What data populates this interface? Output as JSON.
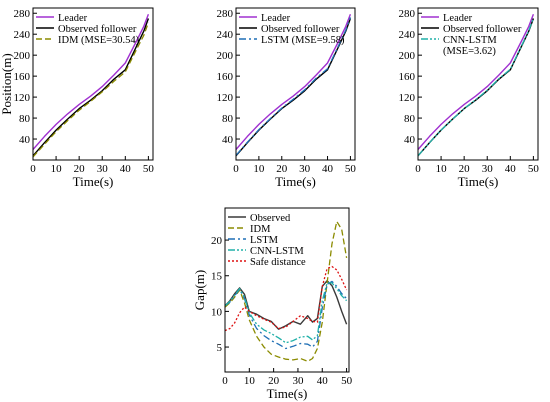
{
  "chart_data": [
    {
      "type": "line",
      "xlabel": "Time(s)",
      "ylabel": "Position(m)",
      "xlim": [
        0,
        52
      ],
      "ylim": [
        0,
        290
      ],
      "xticks": [
        0,
        10,
        20,
        30,
        40,
        50
      ],
      "yticks": [
        40,
        80,
        120,
        160,
        200,
        240,
        280
      ],
      "legend_position": "top-left",
      "series": [
        {
          "name": "Leader",
          "color": "#a030d0",
          "style": "solid",
          "x": [
            0,
            5,
            10,
            15,
            20,
            25,
            30,
            35,
            40,
            45,
            48,
            50
          ],
          "y": [
            20,
            45,
            68,
            88,
            106,
            122,
            140,
            162,
            185,
            228,
            255,
            278
          ]
        },
        {
          "name": "Observed follower",
          "color": "#000000",
          "style": "solid",
          "x": [
            0,
            5,
            10,
            15,
            20,
            25,
            30,
            35,
            40,
            45,
            48,
            50
          ],
          "y": [
            8,
            33,
            57,
            78,
            98,
            114,
            132,
            154,
            172,
            218,
            246,
            270
          ]
        },
        {
          "name": "IDM (MSE=30.54)",
          "color": "#8b8b00",
          "style": "dash",
          "x": [
            0,
            5,
            10,
            15,
            20,
            25,
            30,
            35,
            40,
            45,
            48,
            50
          ],
          "y": [
            6,
            30,
            54,
            75,
            95,
            112,
            130,
            150,
            168,
            212,
            238,
            262
          ]
        }
      ]
    },
    {
      "type": "line",
      "xlabel": "Time(s)",
      "ylabel": "",
      "xlim": [
        0,
        52
      ],
      "ylim": [
        0,
        290
      ],
      "xticks": [
        0,
        10,
        20,
        30,
        40,
        50
      ],
      "yticks": [
        40,
        80,
        120,
        160,
        200,
        240,
        280
      ],
      "legend_position": "top-left",
      "series": [
        {
          "name": "Leader",
          "color": "#a030d0",
          "style": "solid",
          "x": [
            0,
            5,
            10,
            15,
            20,
            25,
            30,
            35,
            40,
            45,
            48,
            50
          ],
          "y": [
            20,
            45,
            68,
            88,
            106,
            122,
            140,
            162,
            185,
            228,
            255,
            278
          ]
        },
        {
          "name": "Observed follower",
          "color": "#000000",
          "style": "solid",
          "x": [
            0,
            5,
            10,
            15,
            20,
            25,
            30,
            35,
            40,
            45,
            48,
            50
          ],
          "y": [
            8,
            33,
            57,
            78,
            98,
            114,
            132,
            154,
            172,
            218,
            246,
            270
          ]
        },
        {
          "name": "LSTM (MSE=9.58)",
          "color": "#1f6fb5",
          "style": "dashdot",
          "x": [
            0,
            5,
            10,
            15,
            20,
            25,
            30,
            35,
            40,
            45,
            48,
            50
          ],
          "y": [
            9,
            34,
            58,
            79,
            99,
            116,
            134,
            156,
            174,
            220,
            248,
            272
          ]
        }
      ]
    },
    {
      "type": "line",
      "xlabel": "Time(s)",
      "ylabel": "",
      "xlim": [
        0,
        52
      ],
      "ylim": [
        0,
        290
      ],
      "xticks": [
        0,
        10,
        20,
        30,
        40,
        50
      ],
      "yticks": [
        40,
        80,
        120,
        160,
        200,
        240,
        280
      ],
      "legend_position": "top-left",
      "series": [
        {
          "name": "Leader",
          "color": "#a030d0",
          "style": "solid",
          "x": [
            0,
            5,
            10,
            15,
            20,
            25,
            30,
            35,
            40,
            45,
            48,
            50
          ],
          "y": [
            20,
            45,
            68,
            88,
            106,
            122,
            140,
            162,
            185,
            228,
            255,
            278
          ]
        },
        {
          "name": "Observed follower",
          "color": "#000000",
          "style": "solid",
          "x": [
            0,
            5,
            10,
            15,
            20,
            25,
            30,
            35,
            40,
            45,
            48,
            50
          ],
          "y": [
            8,
            33,
            57,
            78,
            98,
            114,
            132,
            154,
            172,
            218,
            246,
            270
          ]
        },
        {
          "name": "CNN-LSTM (MSE=3.62)",
          "color": "#20b0a8",
          "style": "dashdotdot",
          "x": [
            0,
            5,
            10,
            15,
            20,
            25,
            30,
            35,
            40,
            45,
            48,
            50
          ],
          "y": [
            8,
            33,
            57,
            78,
            98,
            115,
            133,
            155,
            173,
            219,
            247,
            271
          ]
        }
      ]
    },
    {
      "type": "line",
      "xlabel": "Time(s)",
      "ylabel": "Gap(m)",
      "xlim": [
        0,
        51
      ],
      "ylim": [
        1.5,
        24.5
      ],
      "xticks": [
        0,
        10,
        20,
        30,
        40,
        50
      ],
      "yticks": [
        5,
        10,
        15,
        20
      ],
      "legend_position": "top-left",
      "series": [
        {
          "name": "Observed",
          "color": "#3a3a3a",
          "style": "solid",
          "x": [
            0,
            2,
            4,
            6,
            8,
            10,
            13,
            16,
            19,
            22,
            25,
            28,
            31,
            34,
            36,
            38,
            40,
            42,
            44,
            46,
            48,
            50
          ],
          "y": [
            10.8,
            11.5,
            12.5,
            13.3,
            12.4,
            10.0,
            9.6,
            9.0,
            8.6,
            7.5,
            8.0,
            8.6,
            8.2,
            9.4,
            8.5,
            9.0,
            13.5,
            14.3,
            13.6,
            12.0,
            10.0,
            8.2
          ]
        },
        {
          "name": "IDM",
          "color": "#8b8b00",
          "style": "dash",
          "x": [
            0,
            2,
            4,
            6,
            8,
            10,
            13,
            16,
            19,
            22,
            25,
            28,
            31,
            34,
            36,
            38,
            40,
            42,
            44,
            46,
            48,
            50
          ],
          "y": [
            10.6,
            11.2,
            12.0,
            13.0,
            11.2,
            8.8,
            6.5,
            5.0,
            4.0,
            3.6,
            3.3,
            3.2,
            3.4,
            3.0,
            3.4,
            4.8,
            8.5,
            14.0,
            19.5,
            22.6,
            21.5,
            17.5
          ]
        },
        {
          "name": "LSTM",
          "color": "#1f6fb5",
          "style": "dashdot",
          "x": [
            0,
            2,
            4,
            6,
            8,
            10,
            13,
            16,
            19,
            22,
            25,
            28,
            31,
            34,
            36,
            38,
            40,
            42,
            44,
            46,
            48,
            50
          ],
          "y": [
            10.8,
            11.3,
            12.2,
            13.1,
            11.8,
            9.5,
            7.6,
            6.6,
            5.9,
            5.4,
            4.8,
            5.1,
            5.5,
            5.4,
            5.0,
            5.8,
            10.5,
            13.8,
            14.2,
            13.5,
            12.5,
            11.8
          ]
        },
        {
          "name": "CNN-LSTM",
          "color": "#20b0a8",
          "style": "dashdotdot",
          "x": [
            0,
            2,
            4,
            6,
            8,
            10,
            13,
            16,
            19,
            22,
            25,
            28,
            31,
            34,
            36,
            38,
            40,
            42,
            44,
            46,
            48,
            50
          ],
          "y": [
            10.8,
            11.4,
            12.3,
            13.2,
            12.0,
            9.8,
            8.2,
            7.4,
            6.9,
            6.3,
            5.6,
            5.9,
            6.4,
            6.5,
            6.0,
            6.6,
            11.5,
            14.0,
            14.0,
            13.2,
            12.2,
            11.5
          ]
        },
        {
          "name": "Safe distance",
          "color": "#dd1111",
          "style": "dot",
          "x": [
            0,
            2,
            4,
            6,
            8,
            10,
            13,
            16,
            19,
            22,
            25,
            28,
            31,
            34,
            36,
            38,
            40,
            42,
            44,
            46,
            48,
            50
          ],
          "y": [
            7.3,
            7.6,
            8.4,
            9.8,
            10.6,
            10.0,
            9.4,
            8.9,
            8.5,
            7.6,
            7.8,
            8.6,
            9.4,
            9.0,
            8.6,
            8.5,
            13.5,
            16.0,
            16.3,
            15.8,
            14.5,
            13.0
          ]
        }
      ]
    }
  ]
}
